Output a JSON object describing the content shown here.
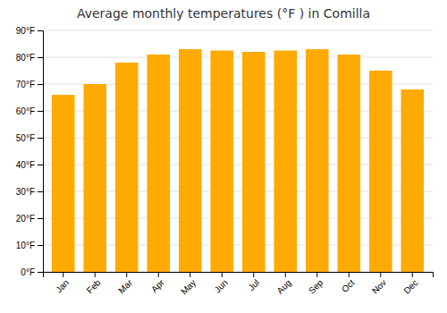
{
  "chart_data": {
    "type": "bar",
    "title": "Average monthly temperatures (°F ) in Comilla",
    "categories": [
      "Jan",
      "Feb",
      "Mar",
      "Apr",
      "May",
      "Jun",
      "Jul",
      "Aug",
      "Sep",
      "Oct",
      "Nov",
      "Dec"
    ],
    "values": [
      66,
      70,
      78,
      81,
      83,
      82.5,
      82,
      82.5,
      83,
      81,
      75,
      68
    ],
    "color": "#FFAA00",
    "ylim": [
      0,
      90
    ],
    "yticks": [
      {
        "value": 0,
        "label": "0°F"
      },
      {
        "value": 10,
        "label": "10°F"
      },
      {
        "value": 20,
        "label": "20°F"
      },
      {
        "value": 30,
        "label": "30°F"
      },
      {
        "value": 40,
        "label": "40°F"
      },
      {
        "value": 50,
        "label": "50°F"
      },
      {
        "value": 60,
        "label": "60°F"
      },
      {
        "value": 70,
        "label": "70°F"
      },
      {
        "value": 80,
        "label": "80°F"
      },
      {
        "value": 90,
        "label": "90°F"
      }
    ],
    "grid": true
  }
}
